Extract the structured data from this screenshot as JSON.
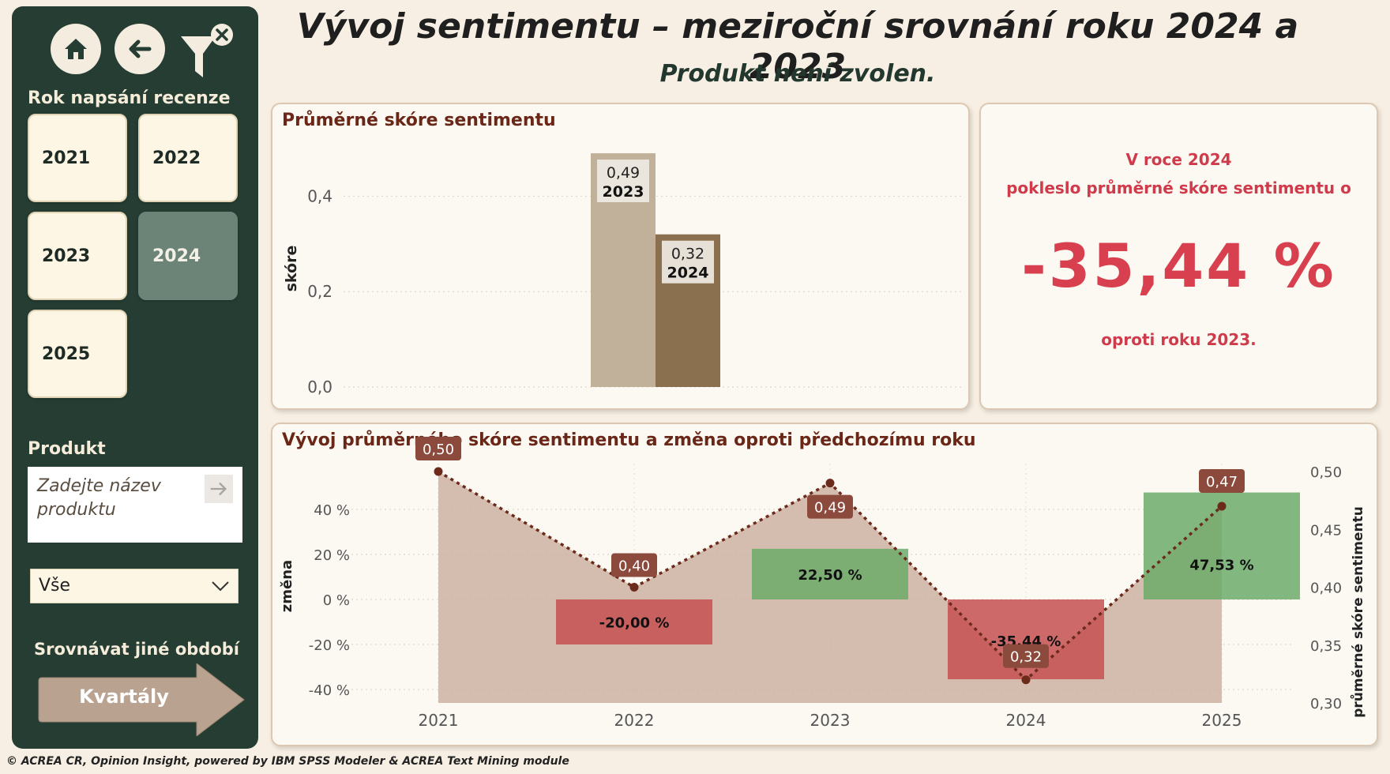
{
  "header": {
    "title": "Vývoj sentimentu – meziroční srovnání roku 2024 a 2023",
    "subtitle": "Produkt není zvolen."
  },
  "sidebar": {
    "nav": [
      {
        "icon": "home-icon"
      },
      {
        "icon": "back-arrow-icon"
      },
      {
        "icon": "clear-filter-icon"
      }
    ],
    "year_section_label": "Rok napsání recenze",
    "years": [
      {
        "label": "2021",
        "selected": false
      },
      {
        "label": "2022",
        "selected": false
      },
      {
        "label": "2023",
        "selected": false
      },
      {
        "label": "2024",
        "selected": true
      },
      {
        "label": "2025",
        "selected": false
      }
    ],
    "product_label": "Produkt",
    "product_placeholder": "Zadejte název produktu",
    "dropdown_value": "Vše",
    "compare_label": "Srovnávat jiné období",
    "compare_button": "Kvartály"
  },
  "bar_card": {
    "title": "Průměrné skóre sentimentu",
    "ylabel": "skóre",
    "ticks": [
      "0,0",
      "0,2",
      "0,4"
    ],
    "bars": [
      {
        "value_label": "0,49",
        "year_label": "2023"
      },
      {
        "value_label": "0,32",
        "year_label": "2024"
      }
    ]
  },
  "kpi": {
    "line1": "V roce 2024",
    "line2": "pokleslo průměrné skóre sentimentu o",
    "value": "-35,44 %",
    "line3": "oproti roku 2023."
  },
  "combo_card": {
    "title": "Vývoj průměrného skóre sentimentu a změna oproti předchozímu roku",
    "left_axis_label": "změna",
    "right_axis_label": "průměrné skóre sentimentu",
    "left_ticks": [
      "40 %",
      "20 %",
      "0 %",
      "-20 %",
      "-40 %"
    ],
    "right_ticks": [
      "0,50",
      "0,45",
      "0,40",
      "0,35",
      "0,30"
    ],
    "years": [
      "2021",
      "2022",
      "2023",
      "2024",
      "2025"
    ],
    "score_labels": [
      "0,50",
      "0,40",
      "0,49",
      "0,32",
      "0,47"
    ],
    "change_labels": [
      "",
      "-20,00 %",
      "22,50 %",
      "-35,44 %",
      "47,53 %"
    ]
  },
  "chart_data": [
    {
      "type": "bar",
      "title": "Průměrné skóre sentimentu",
      "ylabel": "skóre",
      "categories": [
        "2023",
        "2024"
      ],
      "values": [
        0.49,
        0.32
      ],
      "ylim": [
        0,
        0.5
      ],
      "colors": [
        "#c2b19a",
        "#8b704f"
      ]
    },
    {
      "type": "bar",
      "title": "Vývoj průměrného skóre sentimentu a změna oproti předchozímu roku",
      "x": [
        "2021",
        "2022",
        "2023",
        "2024",
        "2025"
      ],
      "series": [
        {
          "name": "změna",
          "axis": "left",
          "kind": "bar",
          "values": [
            null,
            -20.0,
            22.5,
            -35.44,
            47.53
          ]
        },
        {
          "name": "průměrné skóre sentimentu",
          "axis": "right",
          "kind": "area-line",
          "values": [
            0.5,
            0.4,
            0.49,
            0.32,
            0.47
          ]
        }
      ],
      "ylim_left": [
        -45,
        55
      ],
      "ylim_right": [
        0.3,
        0.5
      ],
      "colors": {
        "positive": "#6cab6a",
        "negative": "#c45050",
        "area": "#c9ac9e",
        "line": "#6b2a1a"
      }
    }
  ],
  "footer": "© ACREA CR, Opinion Insight, powered by IBM SPSS Modeler & ACREA Text Mining module"
}
